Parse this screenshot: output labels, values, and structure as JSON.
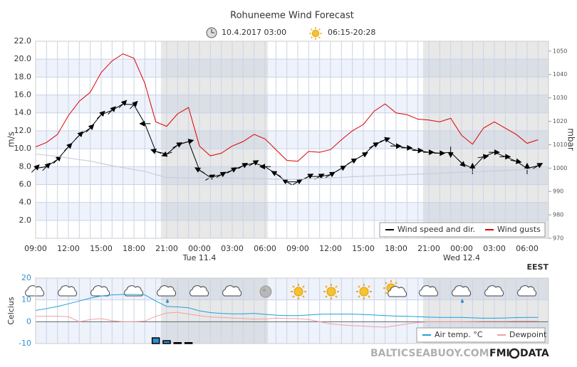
{
  "header": {
    "title": "Rohuneeme Wind Forecast",
    "issued": "10.4.2017 03:00",
    "sun": "06:15-20:28"
  },
  "footer": {
    "site": "BALTICSEABUOY.COM",
    "logo_left": "FMI",
    "logo_right": "DATA"
  },
  "chart_data": [
    {
      "type": "line",
      "ylabel": "m/s",
      "y2label": "mbar",
      "timezone": "EEST",
      "legend": "lower right",
      "grid": true,
      "categories": [
        "09:00",
        null,
        null,
        "12:00",
        null,
        null,
        "15:00",
        null,
        null,
        "18:00",
        null,
        null,
        "21:00",
        null,
        null,
        "00:00",
        null,
        null,
        "03:00",
        null,
        null,
        "06:00",
        null,
        null,
        "09:00",
        null,
        null,
        "12:00",
        null,
        null,
        "15:00",
        null,
        null,
        "18:00",
        null,
        null,
        "21:00",
        null,
        null,
        "00:00",
        null,
        null,
        "03:00",
        null,
        null,
        "06:00",
        null
      ],
      "day_categories": [
        null,
        null,
        null,
        null,
        null,
        null,
        null,
        null,
        null,
        null,
        null,
        null,
        null,
        null,
        null,
        "Tue 11.4",
        null,
        null,
        null,
        null,
        null,
        null,
        null,
        null,
        null,
        null,
        null,
        null,
        null,
        null,
        null,
        null,
        null,
        null,
        null,
        null,
        null,
        null,
        null,
        "Wed 12.4",
        null,
        null,
        null,
        null,
        null,
        null,
        null
      ],
      "shaded_periods": [
        [
          11.47,
          21.25
        ],
        [
          35.47,
          47
        ]
      ],
      "ylim": [
        0,
        22
      ],
      "yticks": [
        {
          "value": 2,
          "label": "2.0"
        },
        {
          "value": 4,
          "label": "4.0"
        },
        {
          "value": 6,
          "label": "6.0"
        },
        {
          "value": 8,
          "label": "8.0"
        },
        {
          "value": 10,
          "label": "10.0"
        },
        {
          "value": 12,
          "label": "12.0"
        },
        {
          "value": 14,
          "label": "14.0"
        },
        {
          "value": 16,
          "label": "16.0"
        },
        {
          "value": 18,
          "label": "18.0"
        },
        {
          "value": 20,
          "label": "20.0"
        },
        {
          "value": 22,
          "label": "22.0"
        }
      ],
      "y2lim": [
        970,
        1054.2
      ],
      "y2ticks": [
        970,
        980,
        990,
        1000,
        1010,
        1020,
        1030,
        1040,
        1050
      ],
      "series": [
        {
          "name": "Wind speed and dir.",
          "color": "#000000",
          "values": [
            7.8,
            8.0,
            8.8,
            10.2,
            11.5,
            12.3,
            13.8,
            14.3,
            15.0,
            14.9,
            12.8,
            9.7,
            9.4,
            10.4,
            10.8,
            7.6,
            6.8,
            7.1,
            7.6,
            8.1,
            8.4,
            8.0,
            7.2,
            6.3,
            6.3,
            6.9,
            6.9,
            7.1,
            7.8,
            8.6,
            9.3,
            10.4,
            11.0,
            10.3,
            10.1,
            9.8,
            9.6,
            9.5,
            9.6,
            8.4,
            7.8,
            9.1,
            9.6,
            9.1,
            8.6,
            7.8,
            8.1
          ],
          "directions": [
            45,
            45,
            45,
            45,
            45,
            45,
            45,
            45,
            45,
            45,
            270,
            290,
            250,
            60,
            75,
            300,
            60,
            60,
            60,
            60,
            60,
            270,
            300,
            300,
            60,
            60,
            60,
            60,
            60,
            60,
            60,
            60,
            70,
            90,
            90,
            90,
            90,
            90,
            180,
            135,
            0,
            80,
            90,
            90,
            100,
            0,
            60
          ]
        },
        {
          "name": "Wind gusts",
          "color": "#e00000",
          "values": [
            10.2,
            10.7,
            11.6,
            13.7,
            15.3,
            16.3,
            18.5,
            19.8,
            20.6,
            20.1,
            17.3,
            13.0,
            12.5,
            13.9,
            14.6,
            10.3,
            9.2,
            9.5,
            10.3,
            10.8,
            11.6,
            11.1,
            9.9,
            8.7,
            8.6,
            9.7,
            9.6,
            9.9,
            11.0,
            12.0,
            12.7,
            14.2,
            15.0,
            14.0,
            13.8,
            13.3,
            13.2,
            13.0,
            13.4,
            11.5,
            10.5,
            12.3,
            13.0,
            12.3,
            11.6,
            10.6,
            11.0
          ]
        },
        {
          "color": "#c9ced8",
          "axis": "y2",
          "values": [
            1006,
            1005.5,
            1005,
            1004.3,
            1003.6,
            1003,
            1002,
            1001,
            1000.2,
            999.4,
            998.6,
            997.2,
            996,
            995.9,
            995.8,
            995.8,
            995.8,
            995.7,
            995.7,
            995.6,
            995.5,
            995.4,
            995.3,
            995.2,
            995.2,
            995.4,
            995.6,
            995.8,
            996,
            996.3,
            996.5,
            996.7,
            996.8,
            997,
            997.2,
            997.4,
            997.6,
            997.8,
            998,
            998.2,
            998.4,
            998.6,
            998.8,
            999,
            999.2,
            999.4,
            999.6
          ]
        }
      ]
    },
    {
      "type": "line",
      "ylabel": "Celcius",
      "legend": "lower right",
      "grid": true,
      "ylim": [
        -10,
        20
      ],
      "yticks": [
        -10,
        0,
        10,
        20
      ],
      "series": [
        {
          "name": "Air temp. °C",
          "color": "#1ea0d8",
          "values": [
            5.2,
            6,
            7,
            8.2,
            9.5,
            10.8,
            11.8,
            12.3,
            12.5,
            12.5,
            12.3,
            9.5,
            7,
            6.8,
            6.4,
            5,
            4.2,
            3.8,
            3.6,
            3.6,
            3.8,
            3.4,
            3,
            2.8,
            2.8,
            3.1,
            3.4,
            3.5,
            3.5,
            3.5,
            3.3,
            3.1,
            2.8,
            2.6,
            2.5,
            2.3,
            2.1,
            2,
            2,
            2,
            1.8,
            1.6,
            1.6,
            1.7,
            1.9,
            2,
            2
          ]
        },
        {
          "name": "Dewpoint",
          "color": "#f2a0a0",
          "values": [
            2.5,
            2.5,
            2.5,
            2.3,
            0,
            1,
            1.4,
            0.5,
            0,
            0,
            0.3,
            2.5,
            4,
            4.3,
            3.5,
            2.8,
            2.2,
            2,
            1.7,
            1.5,
            1.2,
            1.3,
            1.6,
            1.5,
            1.4,
            1,
            0,
            -1,
            -1.5,
            -1.8,
            -2,
            -2.3,
            -2.5,
            -1.8,
            -1,
            -0.4,
            0,
            0,
            0,
            0,
            0.1,
            0.2,
            0.2,
            0.2,
            0.3,
            0.3,
            0.3
          ]
        },
        {
          "type": "bar",
          "color": "#2a8fd6",
          "values": [
            0,
            0,
            0,
            0,
            0,
            0,
            0,
            0,
            0,
            0,
            0,
            2.6,
            1.3,
            0.4,
            0.4,
            0,
            0,
            0,
            0,
            0,
            0,
            0,
            0,
            0,
            0,
            0,
            0,
            0,
            0,
            0,
            0,
            0,
            0,
            0,
            0,
            0,
            0,
            0,
            0,
            0,
            0,
            0,
            0,
            0,
            0,
            0,
            0
          ]
        }
      ]
    }
  ]
}
